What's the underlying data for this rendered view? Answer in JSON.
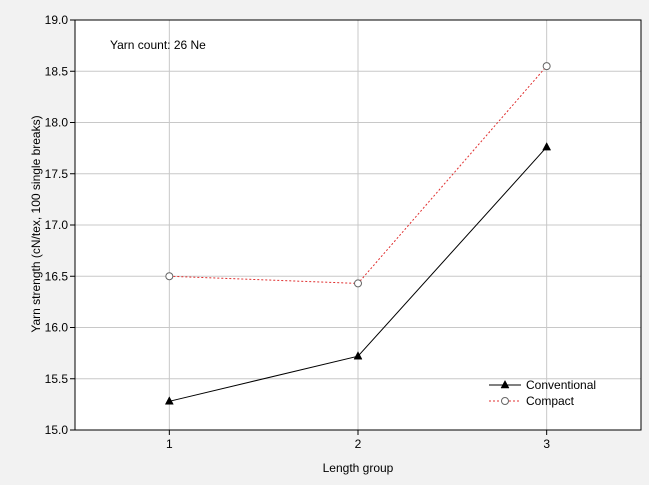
{
  "chart_data": {
    "type": "line",
    "annotation": "Yarn count: 26 Ne",
    "xlabel": "Length group",
    "ylabel": "Yarn strength (cN/tex, 100 single breaks)",
    "x": [
      1,
      2,
      3
    ],
    "xticks": [
      "1",
      "2",
      "3"
    ],
    "xlim": [
      0.5,
      3.5
    ],
    "ylim": [
      15.0,
      19.0
    ],
    "yticks": [
      "15.0",
      "15.5",
      "16.0",
      "16.5",
      "17.0",
      "17.5",
      "18.0",
      "18.5",
      "19.0"
    ],
    "grid": true,
    "legend_position": "bottom-right",
    "series": [
      {
        "name": "Conventional",
        "values": [
          15.28,
          15.72,
          17.76
        ],
        "color": "#000000",
        "marker": "filled-triangle",
        "line": "solid"
      },
      {
        "name": "Compact",
        "values": [
          16.5,
          16.43,
          18.55
        ],
        "color": "#e03030",
        "marker": "open-circle",
        "line": "dashed"
      }
    ]
  }
}
